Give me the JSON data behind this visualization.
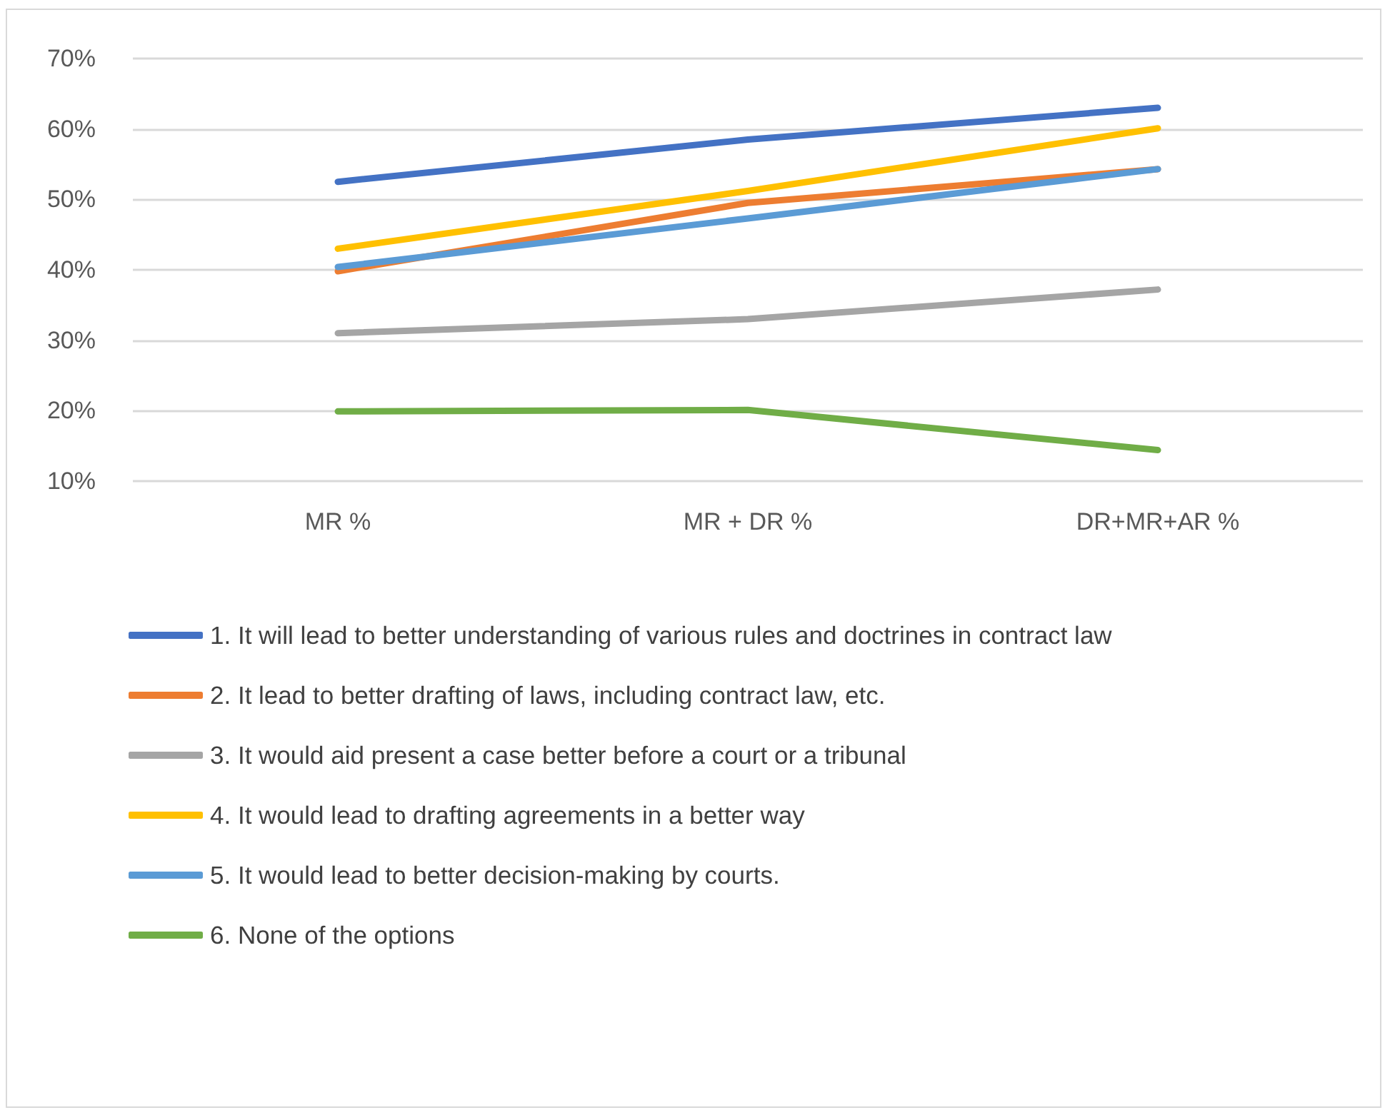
{
  "chart_data": {
    "type": "line",
    "categories": [
      "MR %",
      "MR + DR %",
      "DR+MR+AR %"
    ],
    "series": [
      {
        "name": "1. It will lead to better understanding of various rules and doctrines in contract law",
        "color": "#4472c4",
        "values": [
          52.5,
          58.5,
          63
        ]
      },
      {
        "name": "2. It lead to better drafting of laws, including contract law, etc.",
        "color": "#ed7d31",
        "values": [
          39.8,
          49.5,
          54.3
        ]
      },
      {
        "name": "3. It would aid present a case better before a court or a tribunal",
        "color": "#a5a5a5",
        "values": [
          31,
          33,
          37.2
        ]
      },
      {
        "name": "4. It would lead to drafting agreements in a better way",
        "color": "#ffc000",
        "values": [
          43,
          51.2,
          60.1
        ]
      },
      {
        "name": "5. It would lead to better decision-making by courts.",
        "color": "#5b9bd5",
        "values": [
          40.4,
          47.3,
          54.3
        ]
      },
      {
        "name": "6. None of the options",
        "color": "#70ad47",
        "values": [
          19.9,
          20.1,
          14.4
        ]
      }
    ],
    "ylim": [
      10,
      70
    ],
    "yticks": [
      {
        "value": 10,
        "label": "10%"
      },
      {
        "value": 20,
        "label": "20%"
      },
      {
        "value": 30,
        "label": "30%"
      },
      {
        "value": 40,
        "label": "40%"
      },
      {
        "value": 50,
        "label": "50%"
      },
      {
        "value": 60,
        "label": "60%"
      },
      {
        "value": 70,
        "label": "70%"
      }
    ],
    "grid": "y",
    "legend": "bottom",
    "marker": "none",
    "line_style": "solid"
  }
}
